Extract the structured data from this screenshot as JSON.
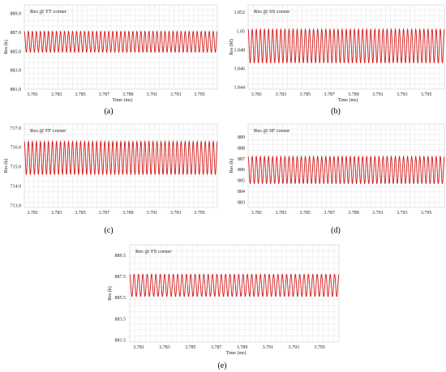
{
  "chart_data": [
    {
      "id": "a",
      "type": "line",
      "title": "Res @ TT corner",
      "caption": "(a)",
      "xlabel": "Time (ms)",
      "ylabel": "Res (k)",
      "xlim": [
        3.7803,
        3.7965
      ],
      "ylim": [
        881.0,
        889.9
      ],
      "xticks": [
        "3.781",
        "3.783",
        "3.785",
        "3.787",
        "3.789",
        "3.791",
        "3.793",
        "3.795"
      ],
      "yticks": [
        "889.0",
        "887.0",
        "885.0",
        "883.0",
        "881.0"
      ],
      "series": [
        {
          "min": 884.9,
          "max": 887.1,
          "cycles": 48,
          "color": "#d41a1a"
        }
      ]
    },
    {
      "id": "b",
      "type": "line",
      "title": "Res @ SS corner",
      "caption": "(b)",
      "xlabel": "Time (ms)",
      "ylabel": "Res (M)",
      "xlim": [
        3.7803,
        3.7965
      ],
      "ylim": [
        1.0438,
        1.0528
      ],
      "xticks": [
        "3.781",
        "3.783",
        "3.785",
        "3.787",
        "3.789",
        "3.791",
        "3.793",
        "3.795"
      ],
      "yticks": [
        "1.052",
        "1.05",
        "1.048",
        "1.046",
        "1.044"
      ],
      "series": [
        {
          "min": 1.0466,
          "max": 1.0502,
          "cycles": 48,
          "color": "#d41a1a"
        }
      ]
    },
    {
      "id": "c",
      "type": "line",
      "title": "Res @ FF corner",
      "caption": "(c)",
      "xlabel": "",
      "ylabel": "Res (k)",
      "xlim": [
        3.7803,
        3.7965
      ],
      "ylim": [
        712.9,
        717.2
      ],
      "xticks": [
        "3.781",
        "3.783",
        "3.785",
        "3.787",
        "3.789",
        "3.791",
        "3.793",
        "3.795"
      ],
      "yticks": [
        "717.0",
        "716.0",
        "715.0",
        "714.0",
        "713.0"
      ],
      "series": [
        {
          "min": 714.6,
          "max": 716.3,
          "cycles": 48,
          "color": "#d41a1a"
        }
      ]
    },
    {
      "id": "d",
      "type": "line",
      "title": "Res @ SF corner",
      "caption": "(d)",
      "xlabel": "",
      "ylabel": "Res (k)",
      "xlim": [
        3.7803,
        3.7965
      ],
      "ylim": [
        882.5,
        890.2
      ],
      "xticks": [
        "3.781",
        "3.783",
        "3.785",
        "3.787",
        "3.789",
        "3.791",
        "3.793",
        "3.795"
      ],
      "yticks": [
        "889",
        "888",
        "887",
        "886",
        "885",
        "884",
        "883"
      ],
      "series": [
        {
          "min": 884.7,
          "max": 887.2,
          "cycles": 48,
          "color": "#d41a1a"
        }
      ]
    },
    {
      "id": "e",
      "type": "line",
      "title": "Res @ FS corner",
      "caption": "(e)",
      "xlabel": "Time (ms)",
      "ylabel": "Res (k)",
      "xlim": [
        3.7803,
        3.7965
      ],
      "ylim": [
        881.3,
        890.5
      ],
      "xticks": [
        "3.781",
        "3.783",
        "3.785",
        "3.787",
        "3.789",
        "3.791",
        "3.793",
        "3.795"
      ],
      "yticks": [
        "889.5",
        "887.5",
        "885.5",
        "883.5",
        "881.5"
      ],
      "series": [
        {
          "min": 885.6,
          "max": 887.7,
          "cycles": 48,
          "color": "#d41a1a"
        }
      ]
    }
  ]
}
